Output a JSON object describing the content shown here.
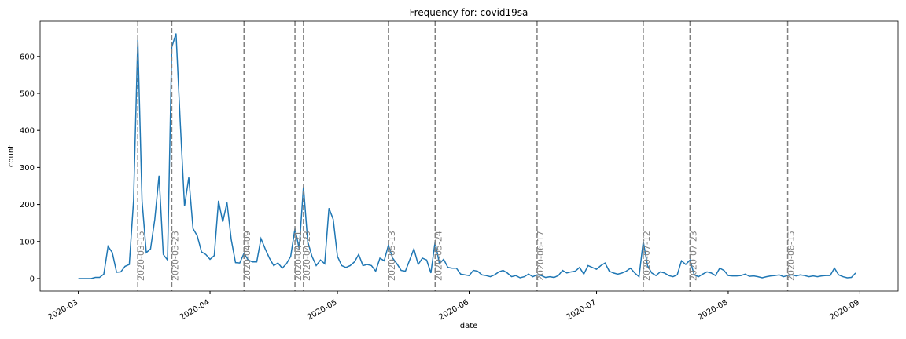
{
  "chart_data": {
    "type": "line",
    "title": "Frequency for: covid19sa",
    "x_label": "date",
    "y_label": "count",
    "x": [
      "2020-03-01",
      "2020-03-02",
      "2020-03-03",
      "2020-03-04",
      "2020-03-05",
      "2020-03-06",
      "2020-03-07",
      "2020-03-08",
      "2020-03-09",
      "2020-03-10",
      "2020-03-11",
      "2020-03-12",
      "2020-03-13",
      "2020-03-14",
      "2020-03-15",
      "2020-03-16",
      "2020-03-17",
      "2020-03-18",
      "2020-03-19",
      "2020-03-20",
      "2020-03-21",
      "2020-03-22",
      "2020-03-23",
      "2020-03-24",
      "2020-03-25",
      "2020-03-26",
      "2020-03-27",
      "2020-03-28",
      "2020-03-29",
      "2020-03-30",
      "2020-03-31",
      "2020-04-01",
      "2020-04-02",
      "2020-04-03",
      "2020-04-04",
      "2020-04-05",
      "2020-04-06",
      "2020-04-07",
      "2020-04-08",
      "2020-04-09",
      "2020-04-10",
      "2020-04-11",
      "2020-04-12",
      "2020-04-13",
      "2020-04-14",
      "2020-04-15",
      "2020-04-16",
      "2020-04-17",
      "2020-04-18",
      "2020-04-19",
      "2020-04-20",
      "2020-04-21",
      "2020-04-22",
      "2020-04-23",
      "2020-04-24",
      "2020-04-25",
      "2020-04-26",
      "2020-04-27",
      "2020-04-28",
      "2020-04-29",
      "2020-04-30",
      "2020-05-01",
      "2020-05-02",
      "2020-05-03",
      "2020-05-04",
      "2020-05-05",
      "2020-05-06",
      "2020-05-07",
      "2020-05-08",
      "2020-05-09",
      "2020-05-10",
      "2020-05-11",
      "2020-05-12",
      "2020-05-13",
      "2020-05-14",
      "2020-05-15",
      "2020-05-16",
      "2020-05-17",
      "2020-05-18",
      "2020-05-19",
      "2020-05-20",
      "2020-05-21",
      "2020-05-22",
      "2020-05-23",
      "2020-05-24",
      "2020-05-25",
      "2020-05-26",
      "2020-05-27",
      "2020-05-28",
      "2020-05-29",
      "2020-05-30",
      "2020-05-31",
      "2020-06-01",
      "2020-06-02",
      "2020-06-03",
      "2020-06-04",
      "2020-06-05",
      "2020-06-06",
      "2020-06-07",
      "2020-06-08",
      "2020-06-09",
      "2020-06-10",
      "2020-06-11",
      "2020-06-12",
      "2020-06-13",
      "2020-06-14",
      "2020-06-15",
      "2020-06-16",
      "2020-06-17",
      "2020-06-18",
      "2020-06-19",
      "2020-06-20",
      "2020-06-21",
      "2020-06-22",
      "2020-06-23",
      "2020-06-24",
      "2020-06-25",
      "2020-06-26",
      "2020-06-27",
      "2020-06-28",
      "2020-06-29",
      "2020-06-30",
      "2020-07-01",
      "2020-07-02",
      "2020-07-03",
      "2020-07-04",
      "2020-07-05",
      "2020-07-06",
      "2020-07-07",
      "2020-07-08",
      "2020-07-09",
      "2020-07-10",
      "2020-07-11",
      "2020-07-12",
      "2020-07-13",
      "2020-07-14",
      "2020-07-15",
      "2020-07-16",
      "2020-07-17",
      "2020-07-18",
      "2020-07-19",
      "2020-07-20",
      "2020-07-21",
      "2020-07-22",
      "2020-07-23",
      "2020-07-24",
      "2020-07-25",
      "2020-07-26",
      "2020-07-27",
      "2020-07-28",
      "2020-07-29",
      "2020-07-30",
      "2020-07-31",
      "2020-08-01",
      "2020-08-02",
      "2020-08-03",
      "2020-08-04",
      "2020-08-05",
      "2020-08-06",
      "2020-08-07",
      "2020-08-08",
      "2020-08-09",
      "2020-08-10",
      "2020-08-11",
      "2020-08-12",
      "2020-08-13",
      "2020-08-14",
      "2020-08-15",
      "2020-08-16",
      "2020-08-17",
      "2020-08-18",
      "2020-08-19",
      "2020-08-20",
      "2020-08-21",
      "2020-08-22",
      "2020-08-23",
      "2020-08-24",
      "2020-08-25",
      "2020-08-26",
      "2020-08-27",
      "2020-08-28",
      "2020-08-29",
      "2020-08-30",
      "2020-08-31"
    ],
    "values": [
      0,
      0,
      0,
      0,
      3,
      3,
      12,
      87,
      70,
      17,
      18,
      33,
      38,
      210,
      645,
      210,
      70,
      80,
      160,
      278,
      65,
      50,
      625,
      662,
      420,
      195,
      273,
      135,
      115,
      72,
      65,
      52,
      62,
      210,
      153,
      205,
      105,
      43,
      42,
      68,
      50,
      45,
      45,
      108,
      80,
      55,
      35,
      42,
      28,
      40,
      60,
      135,
      80,
      248,
      100,
      60,
      35,
      50,
      40,
      190,
      160,
      60,
      35,
      30,
      35,
      45,
      65,
      35,
      38,
      35,
      20,
      55,
      48,
      90,
      55,
      40,
      22,
      20,
      50,
      80,
      38,
      55,
      50,
      15,
      100,
      40,
      52,
      30,
      28,
      28,
      12,
      10,
      8,
      22,
      20,
      10,
      8,
      5,
      10,
      18,
      22,
      15,
      5,
      8,
      2,
      5,
      12,
      5,
      10,
      8,
      3,
      5,
      3,
      8,
      22,
      15,
      18,
      20,
      30,
      12,
      35,
      30,
      25,
      35,
      42,
      20,
      15,
      12,
      15,
      20,
      28,
      15,
      5,
      100,
      35,
      15,
      8,
      18,
      15,
      8,
      5,
      10,
      48,
      38,
      50,
      10,
      5,
      12,
      18,
      15,
      8,
      28,
      22,
      8,
      7,
      7,
      8,
      12,
      6,
      7,
      5,
      2,
      5,
      7,
      8,
      10,
      5,
      8,
      10,
      7,
      10,
      8,
      5,
      7,
      5,
      7,
      8,
      8,
      28,
      10,
      5,
      2,
      3,
      15
    ],
    "color": "#1f77b4",
    "vlines": [
      "2020-03-15",
      "2020-03-23",
      "2020-04-09",
      "2020-04-21",
      "2020-04-23",
      "2020-05-13",
      "2020-05-24",
      "2020-06-17",
      "2020-07-12",
      "2020-07-23",
      "2020-08-15"
    ],
    "vline_color": "#808080",
    "xlim": [
      "2020-02-21",
      "2020-09-10"
    ],
    "xticks": [
      {
        "value": "2020-03-01",
        "label": "2020-03"
      },
      {
        "value": "2020-04-01",
        "label": "2020-04"
      },
      {
        "value": "2020-05-01",
        "label": "2020-05"
      },
      {
        "value": "2020-06-01",
        "label": "2020-06"
      },
      {
        "value": "2020-07-01",
        "label": "2020-07"
      },
      {
        "value": "2020-08-01",
        "label": "2020-08"
      },
      {
        "value": "2020-09-01",
        "label": "2020-09"
      }
    ],
    "ylim": [
      -34,
      695
    ],
    "yticks": [
      0,
      100,
      200,
      300,
      400,
      500,
      600
    ]
  }
}
